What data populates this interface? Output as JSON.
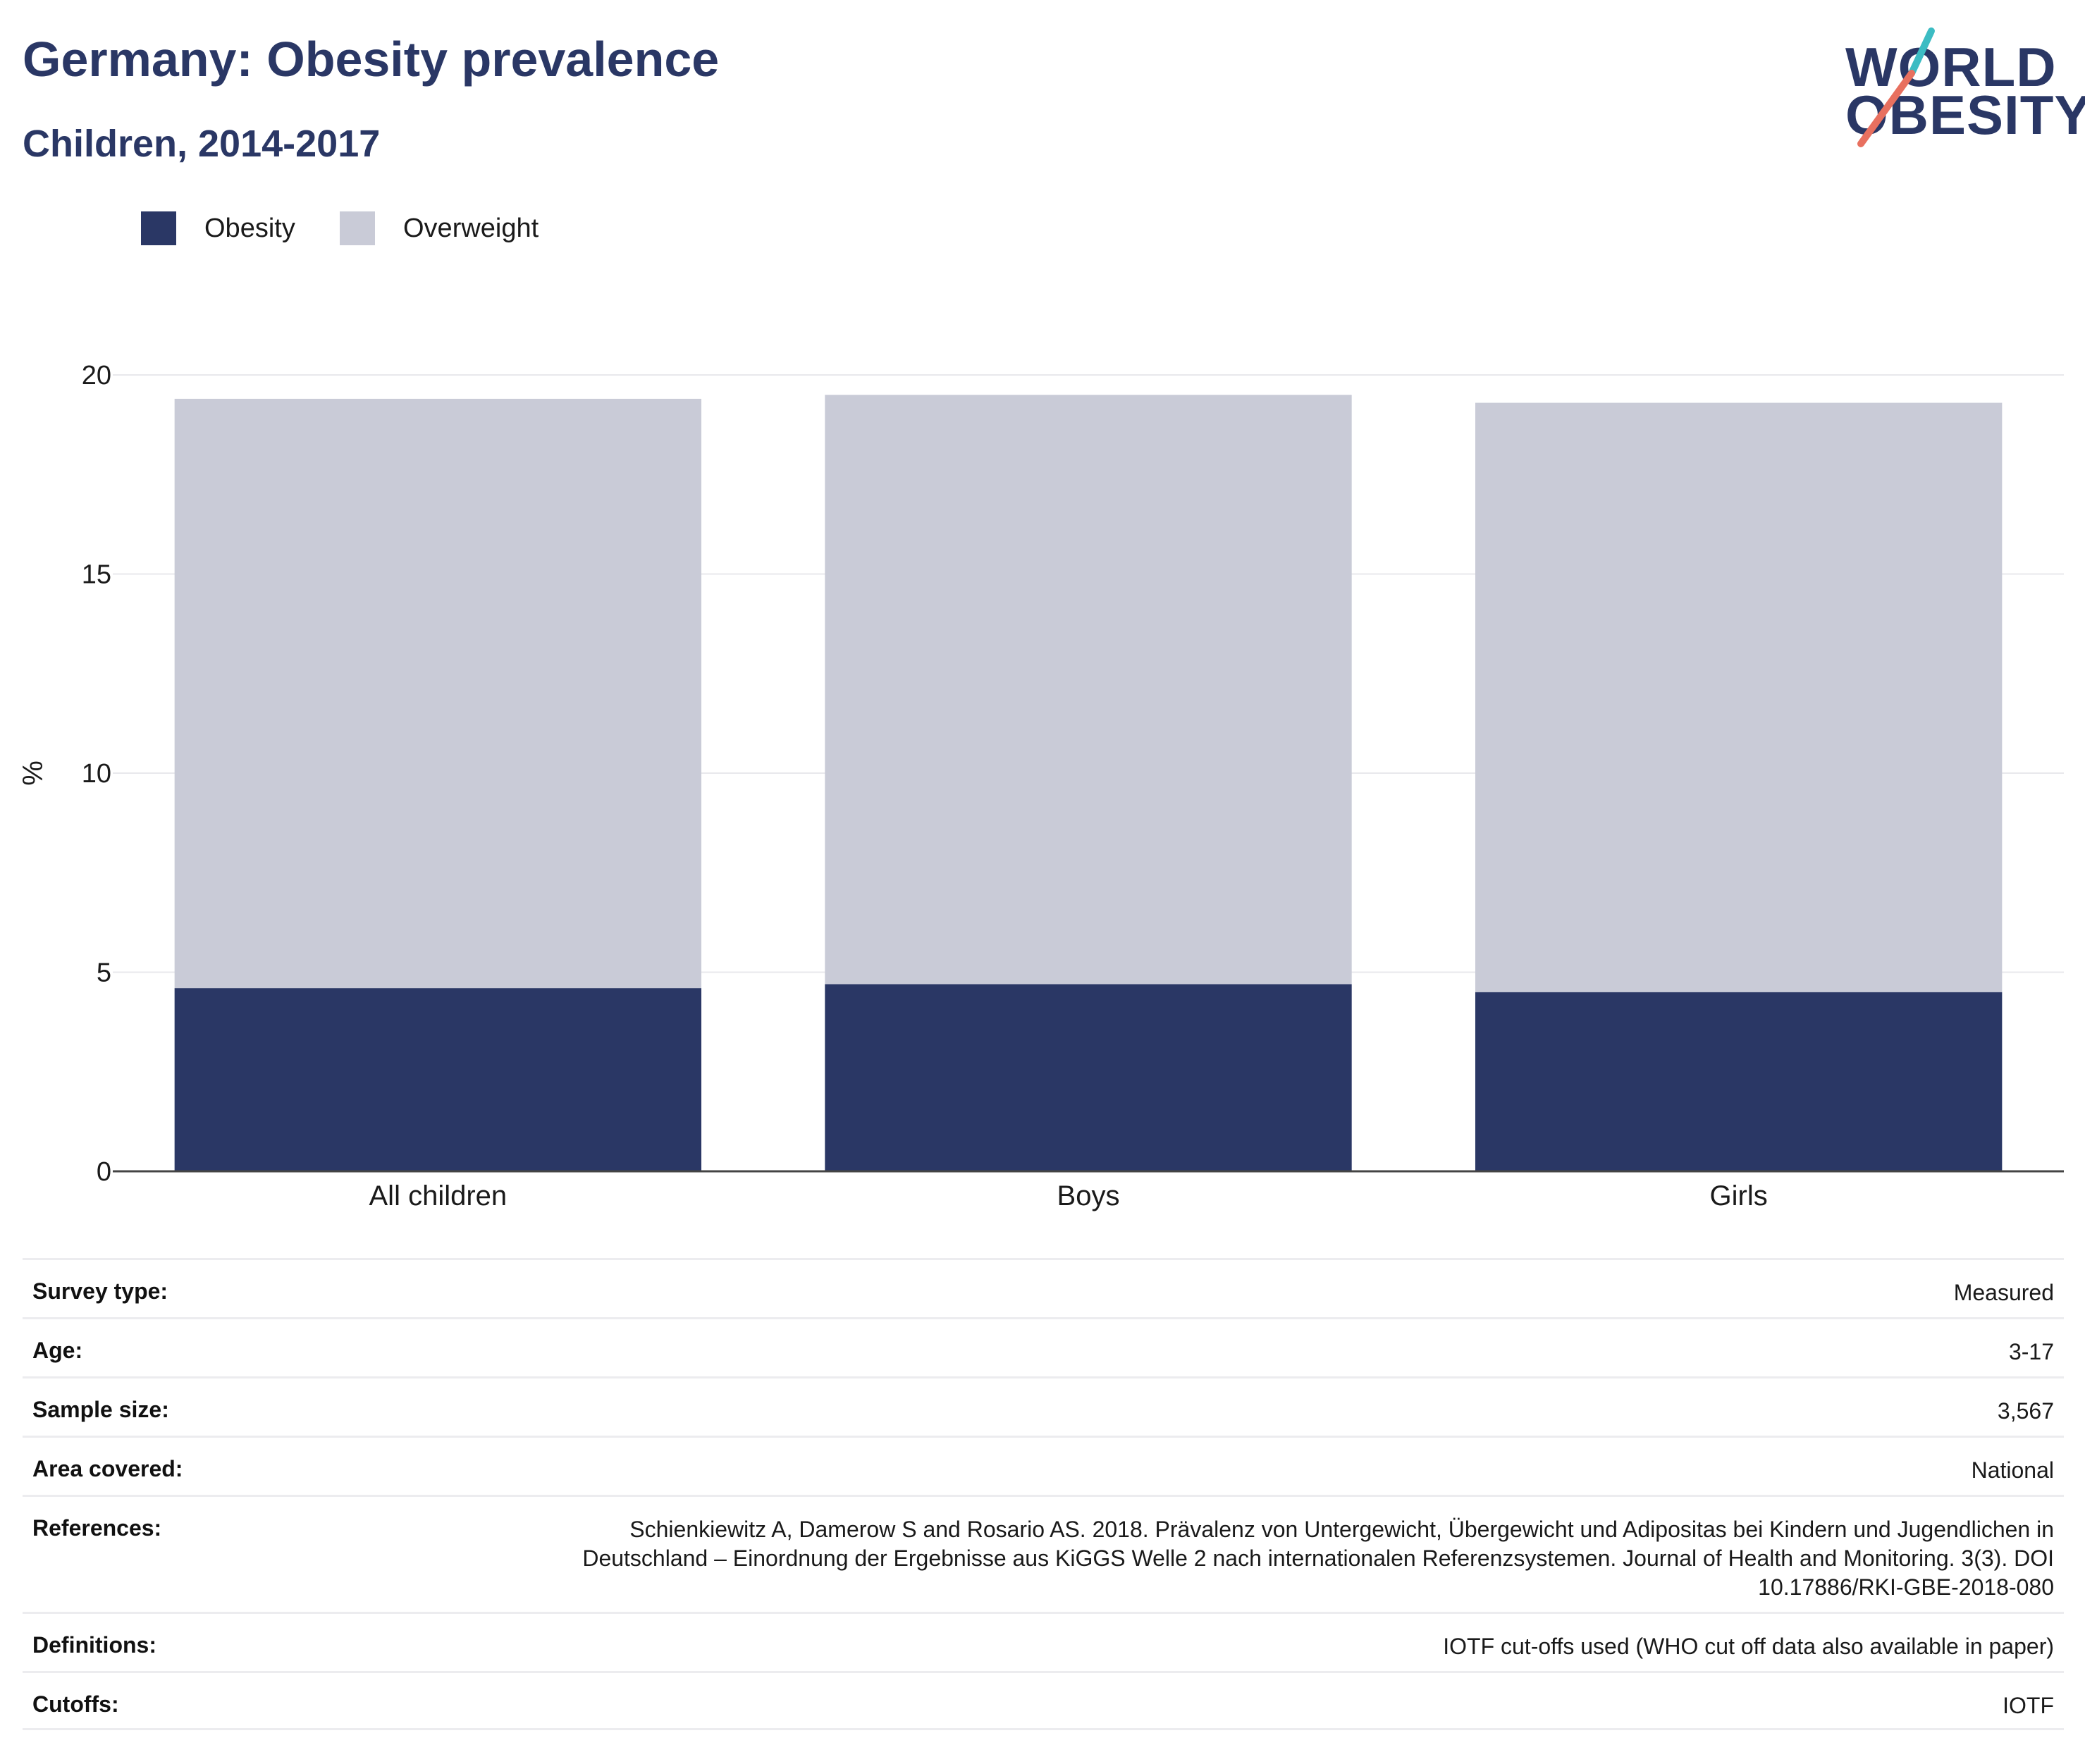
{
  "header": {
    "title": "Germany: Obesity prevalence",
    "subtitle": "Children, 2014-2017"
  },
  "logo": {
    "line1": "WORLD",
    "line2": "OBESITY",
    "accent_teal": "#3cbcc3",
    "accent_coral": "#e8705f"
  },
  "legend": [
    {
      "label": "Obesity",
      "color": "#2a3765"
    },
    {
      "label": "Overweight",
      "color": "#c9cbd7"
    }
  ],
  "chart_data": {
    "type": "bar",
    "stacked": true,
    "categories": [
      "All children",
      "Boys",
      "Girls"
    ],
    "series": [
      {
        "name": "Obesity",
        "values": [
          4.6,
          4.7,
          4.5
        ],
        "color": "#2a3765"
      },
      {
        "name": "Overweight",
        "values": [
          14.8,
          14.8,
          14.8
        ],
        "color": "#c9cbd7"
      }
    ],
    "ylabel": "%",
    "ylim": [
      0,
      20
    ],
    "yticks": [
      0,
      5,
      10,
      15,
      20
    ],
    "grid": true,
    "legend_position": "top-left"
  },
  "meta": [
    {
      "key": "Survey type:",
      "value": "Measured"
    },
    {
      "key": "Age:",
      "value": "3-17"
    },
    {
      "key": "Sample size:",
      "value": "3,567"
    },
    {
      "key": "Area covered:",
      "value": "National"
    },
    {
      "key": "References:",
      "value": "Schienkiewitz A, Damerow S and Rosario AS. 2018. Prävalenz von Untergewicht, Übergewicht und Adipositas bei Kindern und Jugendlichen in Deutschland – Einordnung der Ergebnisse aus KiGGS Welle 2 nach internationalen Referenzsystemen. Journal of Health and Monitoring. 3(3). DOI 10.17886/RKI-GBE-2018-080"
    },
    {
      "key": "Definitions:",
      "value": "IOTF cut-offs used (WHO cut off data also available in paper)"
    },
    {
      "key": "Cutoffs:",
      "value": "IOTF"
    }
  ]
}
